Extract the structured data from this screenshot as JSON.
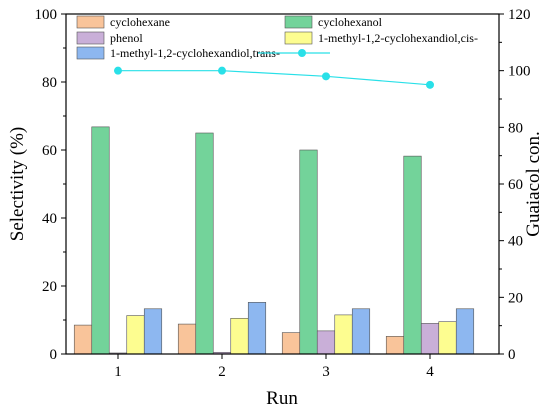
{
  "chart_data": {
    "type": "bar",
    "categories": [
      "1",
      "2",
      "3",
      "4"
    ],
    "xlabel": "Run",
    "ylabel": "Selectivity (%)",
    "y2label": "Guaiacol con.",
    "ylim": [
      0,
      100
    ],
    "y2lim": [
      0,
      120
    ],
    "yticks": [
      0,
      20,
      40,
      60,
      80,
      100
    ],
    "y2ticks": [
      0,
      20,
      40,
      60,
      80,
      100,
      120
    ],
    "series": [
      {
        "name": "cyclohexane",
        "values": [
          8.5,
          8.8,
          6.3,
          5.2
        ],
        "color": "#f9c49a"
      },
      {
        "name": "cyclohexanol",
        "values": [
          66.8,
          65.0,
          60.0,
          58.2
        ],
        "color": "#73d39a"
      },
      {
        "name": "phenol",
        "values": [
          0.3,
          0.5,
          6.8,
          9.0
        ],
        "color": "#c9afd8"
      },
      {
        "name": "1-methyl-1,2-cyclohexandiol,cis-",
        "values": [
          11.3,
          10.5,
          11.5,
          9.5
        ],
        "color": "#fdfd90"
      },
      {
        "name": "1-methyl-1,2-cyclohexandiol,trans-",
        "values": [
          13.3,
          15.2,
          13.3,
          13.3
        ],
        "color": "#8db7f0"
      }
    ],
    "line_series": {
      "name": "",
      "axis": "right",
      "values": [
        100.0,
        100.0,
        98.0,
        95.0
      ],
      "color": "#29e0e8"
    },
    "legend_position": "top"
  }
}
